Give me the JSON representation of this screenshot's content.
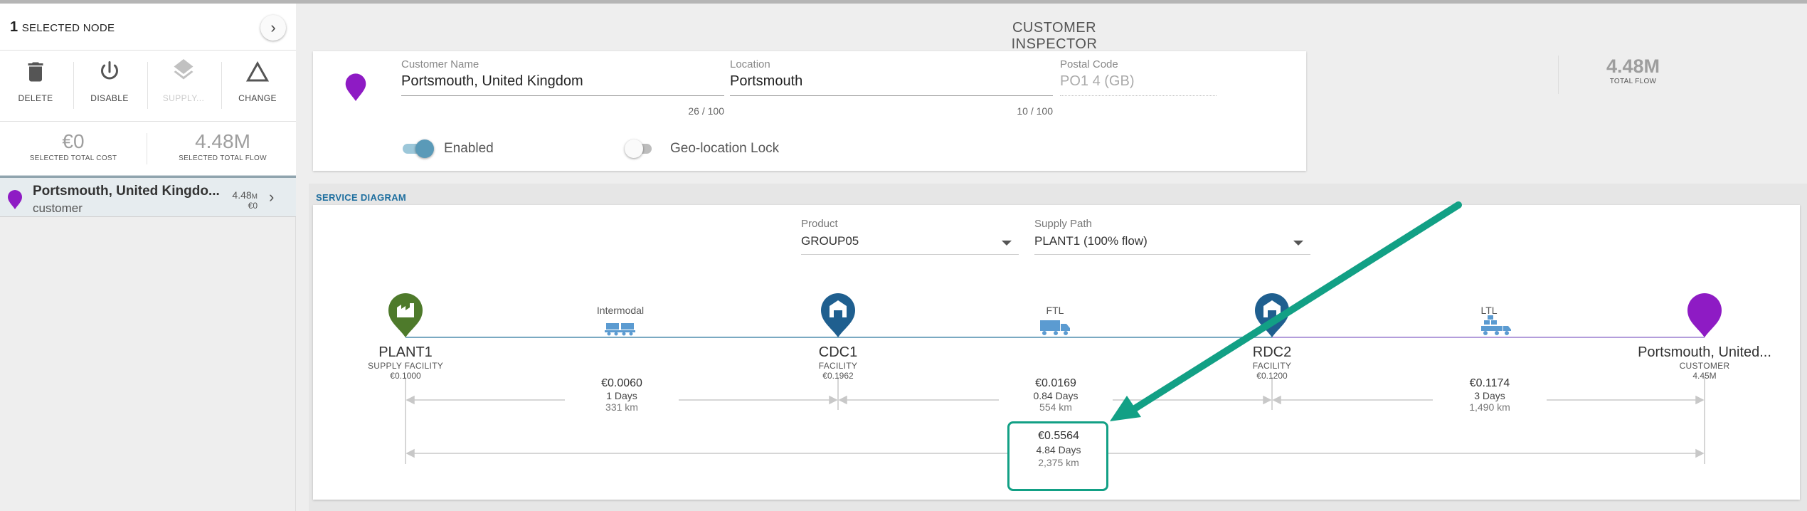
{
  "selection": {
    "count": "1",
    "label": "SELECTED NODE"
  },
  "actions": [
    {
      "label": "DELETE",
      "icon": "trash-icon"
    },
    {
      "label": "DISABLE",
      "icon": "power-icon"
    },
    {
      "label": "SUPPLY...",
      "icon": "layers-icon"
    },
    {
      "label": "CHANGE",
      "icon": "delta-icon"
    }
  ],
  "totals": {
    "cost_value": "€0",
    "cost_label": "SELECTED TOTAL COST",
    "flow_value": "4.48M",
    "flow_label": "SELECTED TOTAL FLOW"
  },
  "selected_item": {
    "name": "Portsmouth, United Kingdo...",
    "type": "customer",
    "flow": "4.48",
    "flow_unit": "M",
    "cost": "€0",
    "pin_color": "#8e1bc4"
  },
  "inspector": {
    "title": "CUSTOMER INSPECTOR",
    "customer_name_label": "Customer Name",
    "customer_name_value": "Portsmouth, United Kingdom",
    "customer_name_counter": "26 / 100",
    "location_label": "Location",
    "location_value": "Portsmouth",
    "location_counter": "10 / 100",
    "postal_label": "Postal Code",
    "postal_value": "PO1 4 (GB)",
    "enabled_label": "Enabled",
    "enabled": true,
    "geolock_label": "Geo-location Lock",
    "geolock": false,
    "total_flow_value": "4.48M",
    "total_flow_label": "TOTAL FLOW"
  },
  "service_diagram": {
    "title": "SERVICE DIAGRAM",
    "product_label": "Product",
    "product_value": "GROUP05",
    "supply_path_label": "Supply Path",
    "supply_path_value": "PLANT1 (100% flow)",
    "nodes": [
      {
        "name": "PLANT1",
        "type": "SUPPLY FACILITY",
        "value": "€0.1000",
        "icon": "factory-icon",
        "color": "#4e7a2b"
      },
      {
        "name": "CDC1",
        "type": "FACILITY",
        "value": "€0.1962",
        "icon": "warehouse-icon",
        "color": "#1f5f8f"
      },
      {
        "name": "RDC2",
        "type": "FACILITY",
        "value": "€0.1200",
        "icon": "warehouse-icon",
        "color": "#1f5f8f"
      },
      {
        "name": "Portsmouth, United...",
        "type": "CUSTOMER",
        "value": "4.45M",
        "icon": "customer-pin-icon",
        "color": "#8e1bc4"
      }
    ],
    "segments": [
      {
        "mode": "Intermodal",
        "icon": "intermodal-icon",
        "cost": "€0.0060",
        "days": "1 Days",
        "distance": "331 km"
      },
      {
        "mode": "FTL",
        "icon": "truck-icon",
        "cost": "€0.0169",
        "days": "0.84 Days",
        "distance": "554 km"
      },
      {
        "mode": "LTL",
        "icon": "ltl-truck-icon",
        "cost": "€0.1174",
        "days": "3 Days",
        "distance": "1,490 km"
      }
    ],
    "total": {
      "cost": "€0.5564",
      "days": "4.84 Days",
      "distance": "2,375 km"
    },
    "annotation_color": "#12a085"
  }
}
